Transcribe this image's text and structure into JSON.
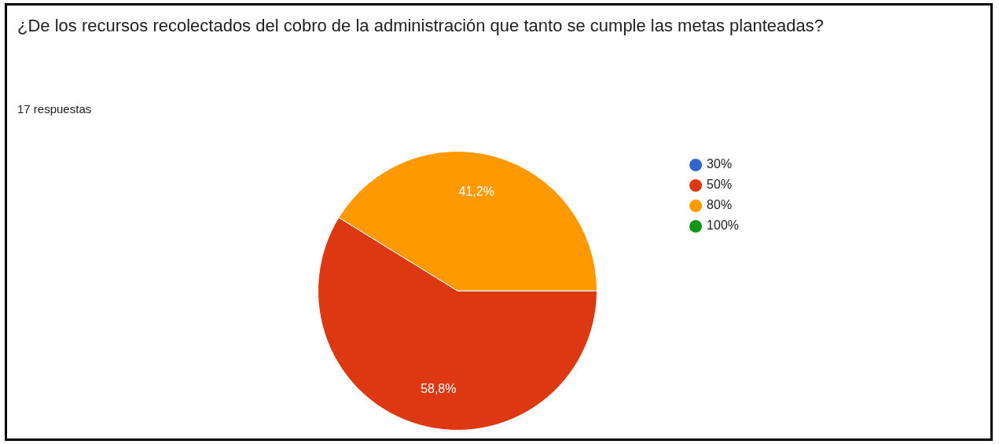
{
  "chart_data": {
    "type": "pie",
    "title": "¿De los recursos recolectados del cobro de la administración que tanto se cumple las metas planteadas?",
    "subtitle": "17 respuestas",
    "categories": [
      "30%",
      "50%",
      "80%",
      "100%"
    ],
    "values": [
      0,
      58.8,
      41.2,
      0
    ],
    "colors": [
      "#3366cc",
      "#dc3912",
      "#ff9900",
      "#109618"
    ],
    "value_labels": [
      null,
      "58,8%",
      "41,2%",
      null
    ],
    "legend": "right"
  }
}
